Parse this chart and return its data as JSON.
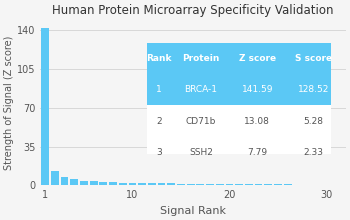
{
  "title": "Human Protein Microarray Specificity Validation",
  "xlabel": "Signal Rank",
  "ylabel": "Strength of Signal (Z score)",
  "yticks": [
    0,
    35,
    70,
    105,
    140
  ],
  "xticks": [
    1,
    10,
    20,
    30
  ],
  "xlim": [
    0.5,
    32
  ],
  "ylim": [
    0,
    148
  ],
  "bar_color": "#5bc8f5",
  "table_header_bg": "#5bc8f5",
  "table_header_text": "#ffffff",
  "table_row1_bg": "#5bc8f5",
  "table_row1_text": "#ffffff",
  "table_row_bg": "#ffffff",
  "table_row_text": "#555555",
  "table_border_color": "#cccccc",
  "table_cols": [
    "Rank",
    "Protein",
    "Z score",
    "S score"
  ],
  "table_data": [
    [
      "1",
      "BRCA-1",
      "141.59",
      "128.52"
    ],
    [
      "2",
      "CD71b",
      "13.08",
      "5.28"
    ],
    [
      "3",
      "SSH2",
      "7.79",
      "2.33"
    ]
  ],
  "z_scores": [
    141.59,
    13.08,
    7.79,
    5.5,
    4.2,
    3.8,
    3.2,
    2.9,
    2.6,
    2.4,
    2.2,
    2.1,
    1.9,
    1.8,
    1.7,
    1.6,
    1.5,
    1.4,
    1.3,
    1.2,
    1.1,
    1.05,
    1.0,
    0.95,
    0.9,
    0.85,
    0.8,
    0.75,
    0.7,
    0.65
  ]
}
